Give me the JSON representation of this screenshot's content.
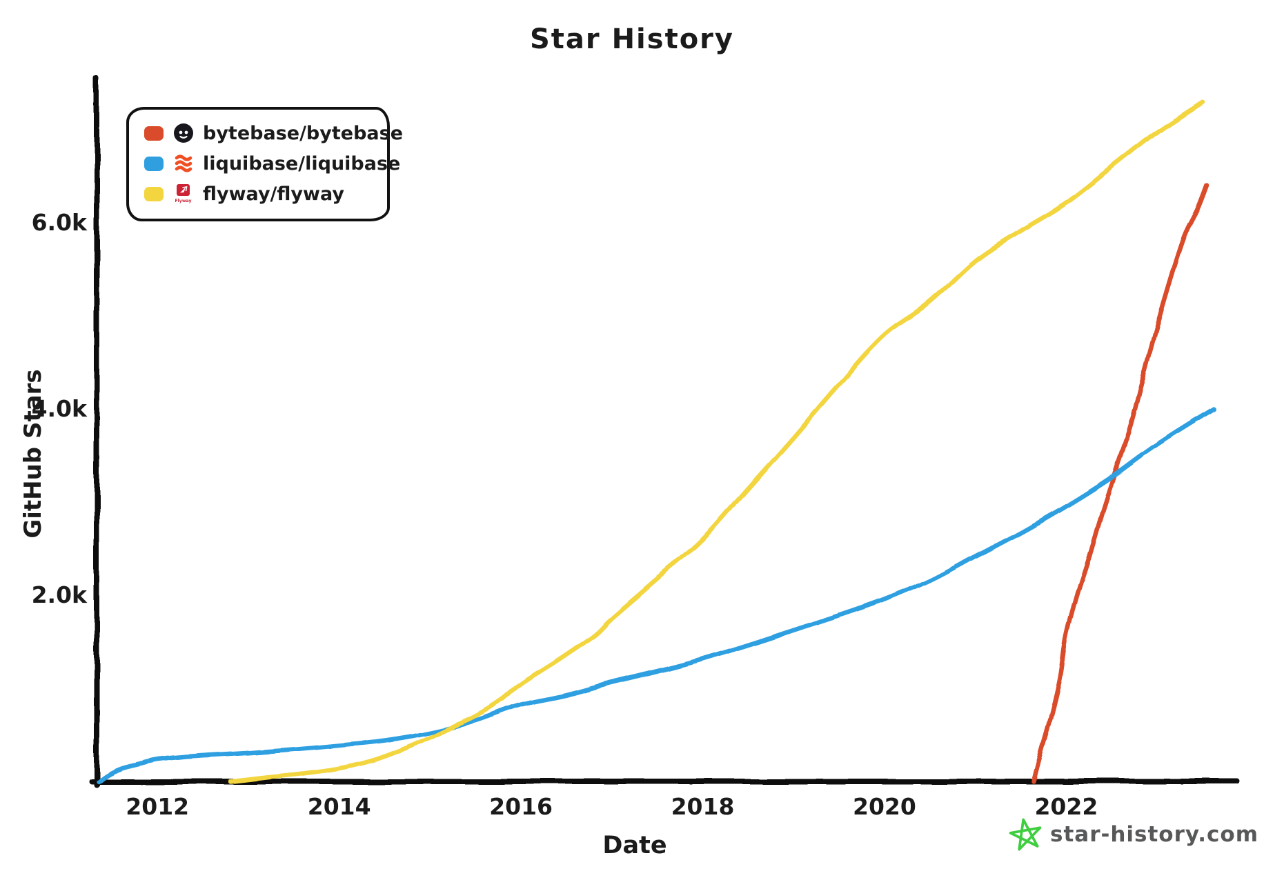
{
  "title": "Star History",
  "watermark": {
    "text": "star-history.com",
    "text_color": "#57585a",
    "star_color": "#3fce3f"
  },
  "legend": {
    "items": [
      {
        "key": "bytebase",
        "label": "bytebase/bytebase",
        "swatch": "#da4b2c",
        "icon": "bytebase-logo",
        "logo_color": "#17171d"
      },
      {
        "key": "liquibase",
        "label": "liquibase/liquibase",
        "swatch": "#2f9fe0",
        "icon": "liquibase-logo",
        "logo_color": "#f04e23"
      },
      {
        "key": "flyway",
        "label": "flyway/flyway",
        "swatch": "#f3d53f",
        "icon": "flyway-logo",
        "logo_color": "#cc2336",
        "icon_text": "Flyway"
      }
    ]
  },
  "chart_data": {
    "type": "line",
    "title": "Star History",
    "xlabel": "Date",
    "ylabel": "GitHub Stars",
    "x_ticks": [
      {
        "value": 2012,
        "label": "2012"
      },
      {
        "value": 2014,
        "label": "2014"
      },
      {
        "value": 2016,
        "label": "2016"
      },
      {
        "value": 2018,
        "label": "2018"
      },
      {
        "value": 2020,
        "label": "2020"
      },
      {
        "value": 2022,
        "label": "2022"
      }
    ],
    "y_ticks": [
      {
        "value": 2000,
        "label": "2.0k"
      },
      {
        "value": 4000,
        "label": "4.0k"
      },
      {
        "value": 6000,
        "label": "6.0k"
      }
    ],
    "xlim": [
      2011.33,
      2023.88
    ],
    "ylim": [
      0,
      7550
    ],
    "grid": false,
    "legend_position": "top-left",
    "axis_color": "#111111",
    "series": [
      {
        "name": "bytebase/bytebase",
        "color": "#da4b2c",
        "points": [
          [
            2021.64,
            0
          ],
          [
            2021.72,
            300
          ],
          [
            2021.82,
            650
          ],
          [
            2021.93,
            1100
          ],
          [
            2022.0,
            1550
          ],
          [
            2022.12,
            2000
          ],
          [
            2022.25,
            2400
          ],
          [
            2022.4,
            2900
          ],
          [
            2022.55,
            3350
          ],
          [
            2022.7,
            3800
          ],
          [
            2022.85,
            4350
          ],
          [
            2023.0,
            4900
          ],
          [
            2023.15,
            5400
          ],
          [
            2023.3,
            5850
          ],
          [
            2023.45,
            6150
          ],
          [
            2023.55,
            6400
          ]
        ]
      },
      {
        "name": "liquibase/liquibase",
        "color": "#2f9fe0",
        "points": [
          [
            2011.35,
            0
          ],
          [
            2011.45,
            70
          ],
          [
            2011.6,
            140
          ],
          [
            2011.8,
            190
          ],
          [
            2012.0,
            235
          ],
          [
            2012.3,
            265
          ],
          [
            2012.6,
            285
          ],
          [
            2013.0,
            310
          ],
          [
            2013.5,
            345
          ],
          [
            2014.0,
            390
          ],
          [
            2014.5,
            440
          ],
          [
            2015.0,
            525
          ],
          [
            2015.5,
            650
          ],
          [
            2016.0,
            820
          ],
          [
            2016.5,
            925
          ],
          [
            2017.0,
            1060
          ],
          [
            2017.5,
            1180
          ],
          [
            2018.0,
            1310
          ],
          [
            2018.5,
            1460
          ],
          [
            2019.0,
            1620
          ],
          [
            2019.5,
            1780
          ],
          [
            2020.0,
            1950
          ],
          [
            2020.5,
            2160
          ],
          [
            2021.0,
            2420
          ],
          [
            2021.5,
            2680
          ],
          [
            2022.0,
            2960
          ],
          [
            2022.5,
            3270
          ],
          [
            2023.0,
            3620
          ],
          [
            2023.62,
            4000
          ]
        ]
      },
      {
        "name": "flyway/flyway",
        "color": "#f3d53f",
        "points": [
          [
            2012.8,
            0
          ],
          [
            2013.2,
            45
          ],
          [
            2013.6,
            85
          ],
          [
            2014.0,
            140
          ],
          [
            2014.4,
            235
          ],
          [
            2014.8,
            385
          ],
          [
            2015.2,
            565
          ],
          [
            2015.5,
            700
          ],
          [
            2015.8,
            880
          ],
          [
            2016.0,
            1050
          ],
          [
            2016.4,
            1300
          ],
          [
            2016.8,
            1570
          ],
          [
            2017.0,
            1760
          ],
          [
            2017.5,
            2180
          ],
          [
            2018.0,
            2600
          ],
          [
            2018.5,
            3150
          ],
          [
            2019.0,
            3700
          ],
          [
            2019.5,
            4270
          ],
          [
            2020.0,
            4800
          ],
          [
            2020.5,
            5150
          ],
          [
            2021.0,
            5600
          ],
          [
            2021.5,
            5920
          ],
          [
            2022.0,
            6220
          ],
          [
            2022.5,
            6600
          ],
          [
            2023.0,
            6980
          ],
          [
            2023.5,
            7300
          ]
        ]
      }
    ]
  }
}
